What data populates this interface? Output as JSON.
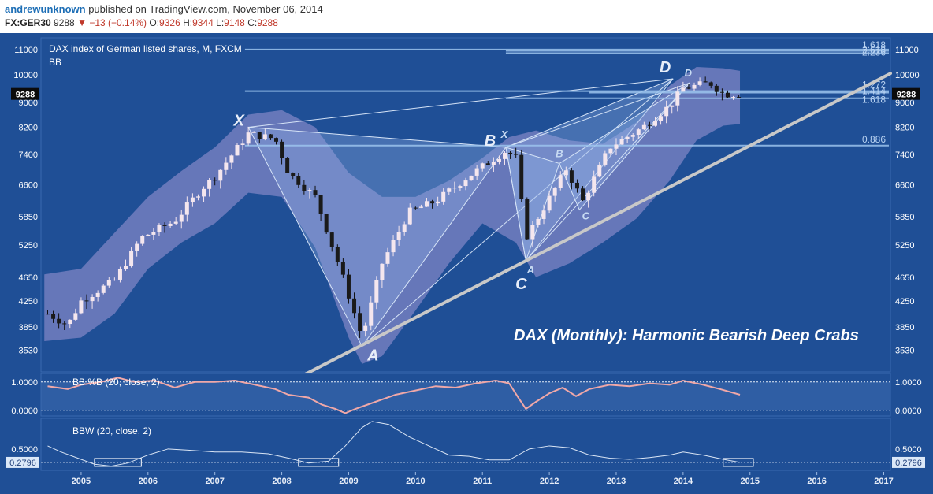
{
  "header": {
    "author": "andrewunknown",
    "published": "published on TradingView.com, November 06, 2014",
    "symbol": "FX:GER30",
    "last": "9288",
    "change_arrow": "▼",
    "change": "−13 (−0.14%)",
    "o_label": "O:",
    "o_value": "9326",
    "h_label": "H:",
    "h_value": "9344",
    "l_label": "L:",
    "l_value": "9148",
    "c_label": "C:",
    "c_value": "9288"
  },
  "colors": {
    "background": "#1f4f96",
    "band": "#7f84c4",
    "pattern_fill": "#8fb0e4",
    "bullish_candle": "#f4e6ee",
    "bearish_candle": "#1a1a1a",
    "fib_line": "#9cc4ee",
    "trend_line": "#c8c8c8",
    "pctb_line": "#f0a8a8",
    "bbw_line": "#dbe6f5"
  },
  "chart_data": {
    "type": "candlestick",
    "title": "DAX index of German listed shares, M, FXCM",
    "indicator_label": "BB",
    "annotation": "DAX (Monthly): Harmonic Bearish Deep Crabs",
    "price_scale": "log",
    "price_ticks": [
      11000,
      10000,
      9000,
      8200,
      7400,
      6600,
      5850,
      5250,
      4650,
      4250,
      3850,
      3530
    ],
    "price_range": [
      3250,
      11500
    ],
    "last_price_badge": "9288",
    "x_range": [
      2004.4,
      2017.1
    ],
    "x_ticks": [
      "2005",
      "2006",
      "2007",
      "2008",
      "2009",
      "2010",
      "2011",
      "2012",
      "2013",
      "2014",
      "2015",
      "2016",
      "2017"
    ],
    "price_path": [
      [
        2004.5,
        4050
      ],
      [
        2004.8,
        3880
      ],
      [
        2005.0,
        4250
      ],
      [
        2005.5,
        4600
      ],
      [
        2005.9,
        5400
      ],
      [
        2006.4,
        5750
      ],
      [
        2006.8,
        6500
      ],
      [
        2007.0,
        6800
      ],
      [
        2007.5,
        8000
      ],
      [
        2007.9,
        7850
      ],
      [
        2008.1,
        6900
      ],
      [
        2008.5,
        6300
      ],
      [
        2008.9,
        4700
      ],
      [
        2009.2,
        3700
      ],
      [
        2009.5,
        4900
      ],
      [
        2009.9,
        5950
      ],
      [
        2010.3,
        6200
      ],
      [
        2010.9,
        6950
      ],
      [
        2011.35,
        7500
      ],
      [
        2011.5,
        7300
      ],
      [
        2011.65,
        5400
      ],
      [
        2011.9,
        6000
      ],
      [
        2012.25,
        7000
      ],
      [
        2012.5,
        6200
      ],
      [
        2012.9,
        7600
      ],
      [
        2013.4,
        8200
      ],
      [
        2013.8,
        8900
      ],
      [
        2014.0,
        9500
      ],
      [
        2014.4,
        9700
      ],
      [
        2014.6,
        9300
      ],
      [
        2014.85,
        9288
      ]
    ],
    "bands_upper": [
      [
        2004.45,
        4700
      ],
      [
        2005.0,
        4800
      ],
      [
        2005.5,
        5500
      ],
      [
        2006.0,
        6300
      ],
      [
        2006.5,
        6950
      ],
      [
        2007.0,
        7600
      ],
      [
        2007.5,
        8600
      ],
      [
        2008.0,
        8750
      ],
      [
        2008.5,
        8200
      ],
      [
        2009.0,
        6900
      ],
      [
        2009.5,
        6300
      ],
      [
        2010.0,
        6300
      ],
      [
        2010.5,
        6700
      ],
      [
        2011.0,
        7300
      ],
      [
        2011.4,
        7900
      ],
      [
        2011.8,
        8100
      ],
      [
        2012.3,
        7800
      ],
      [
        2012.8,
        7700
      ],
      [
        2013.3,
        8350
      ],
      [
        2013.8,
        9600
      ],
      [
        2014.2,
        10300
      ],
      [
        2014.6,
        10250
      ],
      [
        2014.85,
        10150
      ]
    ],
    "bands_lower": [
      [
        2004.45,
        3650
      ],
      [
        2005.0,
        3700
      ],
      [
        2005.5,
        4050
      ],
      [
        2006.0,
        4800
      ],
      [
        2006.5,
        5300
      ],
      [
        2007.0,
        5700
      ],
      [
        2007.5,
        6400
      ],
      [
        2008.0,
        6300
      ],
      [
        2008.5,
        5200
      ],
      [
        2009.0,
        3700
      ],
      [
        2009.2,
        3350
      ],
      [
        2009.5,
        3450
      ],
      [
        2010.0,
        4100
      ],
      [
        2010.5,
        4900
      ],
      [
        2011.0,
        5700
      ],
      [
        2011.5,
        5300
      ],
      [
        2011.8,
        4650
      ],
      [
        2012.3,
        4900
      ],
      [
        2012.8,
        5300
      ],
      [
        2013.3,
        5800
      ],
      [
        2013.8,
        6700
      ],
      [
        2014.2,
        7800
      ],
      [
        2014.6,
        8250
      ],
      [
        2014.85,
        8300
      ]
    ],
    "pattern1": {
      "points": {
        "X": [
          2007.5,
          8200
        ],
        "A": [
          2009.2,
          3580
        ],
        "B": [
          2011.35,
          7600
        ],
        "C": [
          2011.65,
          4950
        ],
        "D": [
          2013.85,
          9850
        ]
      },
      "labels": [
        "X",
        "A",
        "B",
        "C",
        "D"
      ]
    },
    "pattern2": {
      "points": {
        "X": [
          2011.35,
          7600
        ],
        "A": [
          2011.65,
          4950
        ],
        "B": [
          2012.15,
          7150
        ],
        "C": [
          2012.45,
          6000
        ],
        "D": [
          2014.1,
          9700
        ]
      },
      "labels": [
        "X",
        "A",
        "B",
        "C",
        "D"
      ]
    },
    "fib_levels": [
      {
        "label": "1.618",
        "value": 11000,
        "x_start": 2007.45
      },
      {
        "label": "2.236",
        "value": 10950,
        "x_start": 2011.35
      },
      {
        "label": "2.618",
        "value": 10850,
        "x_start": 2011.35
      },
      {
        "label": "1.272",
        "value": 9400,
        "x_start": 2007.45
      },
      {
        "label": "1.414",
        "value": 9350,
        "x_start": 2012.6
      },
      {
        "label": "1.618",
        "value": 9150,
        "x_start": 2011.35
      },
      {
        "label": "0.886",
        "value": 7650,
        "x_start": 2007.45
      }
    ],
    "trendline": [
      [
        2008.3,
        3200
      ],
      [
        2017.1,
        10050
      ]
    ],
    "pctb": {
      "label": "BB %B (20, close, 2)",
      "ticks": [
        "1.0000",
        "0.0000"
      ],
      "upper_level": 1.0,
      "lower_level": 0.0,
      "range": [
        -0.2,
        1.3
      ],
      "values": [
        [
          2004.5,
          0.85
        ],
        [
          2004.8,
          0.75
        ],
        [
          2005.0,
          0.9
        ],
        [
          2005.3,
          1.0
        ],
        [
          2005.55,
          1.15
        ],
        [
          2005.8,
          1.0
        ],
        [
          2006.1,
          1.05
        ],
        [
          2006.4,
          0.8
        ],
        [
          2006.7,
          1.0
        ],
        [
          2007.0,
          1.0
        ],
        [
          2007.3,
          1.05
        ],
        [
          2007.6,
          0.9
        ],
        [
          2007.9,
          0.75
        ],
        [
          2008.1,
          0.55
        ],
        [
          2008.4,
          0.45
        ],
        [
          2008.6,
          0.2
        ],
        [
          2008.8,
          0.05
        ],
        [
          2008.95,
          -0.1
        ],
        [
          2009.1,
          0.05
        ],
        [
          2009.4,
          0.3
        ],
        [
          2009.7,
          0.55
        ],
        [
          2010.0,
          0.7
        ],
        [
          2010.3,
          0.85
        ],
        [
          2010.6,
          0.8
        ],
        [
          2010.9,
          0.95
        ],
        [
          2011.2,
          1.05
        ],
        [
          2011.4,
          0.95
        ],
        [
          2011.55,
          0.4
        ],
        [
          2011.65,
          0.05
        ],
        [
          2011.8,
          0.3
        ],
        [
          2012.0,
          0.6
        ],
        [
          2012.2,
          0.8
        ],
        [
          2012.4,
          0.5
        ],
        [
          2012.6,
          0.75
        ],
        [
          2012.9,
          0.9
        ],
        [
          2013.2,
          0.85
        ],
        [
          2013.5,
          0.95
        ],
        [
          2013.8,
          0.9
        ],
        [
          2014.0,
          1.05
        ],
        [
          2014.3,
          0.9
        ],
        [
          2014.55,
          0.75
        ],
        [
          2014.85,
          0.55
        ]
      ]
    },
    "bbw": {
      "label": "BBW (20, close, 2)",
      "ticks": [
        "0.5000"
      ],
      "last_value_badge": "0.2796",
      "threshold": 0.2796,
      "range": [
        0.15,
        1.0
      ],
      "values": [
        [
          2004.5,
          0.55
        ],
        [
          2004.7,
          0.45
        ],
        [
          2004.95,
          0.35
        ],
        [
          2005.2,
          0.25
        ],
        [
          2005.45,
          0.22
        ],
        [
          2005.7,
          0.27
        ],
        [
          2006.0,
          0.4
        ],
        [
          2006.3,
          0.5
        ],
        [
          2006.6,
          0.48
        ],
        [
          2007.0,
          0.45
        ],
        [
          2007.4,
          0.45
        ],
        [
          2007.8,
          0.42
        ],
        [
          2008.1,
          0.35
        ],
        [
          2008.4,
          0.27
        ],
        [
          2008.7,
          0.3
        ],
        [
          2008.95,
          0.55
        ],
        [
          2009.2,
          0.85
        ],
        [
          2009.35,
          0.95
        ],
        [
          2009.6,
          0.9
        ],
        [
          2009.9,
          0.7
        ],
        [
          2010.2,
          0.55
        ],
        [
          2010.5,
          0.4
        ],
        [
          2010.8,
          0.38
        ],
        [
          2011.1,
          0.32
        ],
        [
          2011.4,
          0.32
        ],
        [
          2011.7,
          0.5
        ],
        [
          2012.0,
          0.55
        ],
        [
          2012.3,
          0.52
        ],
        [
          2012.6,
          0.4
        ],
        [
          2012.9,
          0.35
        ],
        [
          2013.2,
          0.33
        ],
        [
          2013.5,
          0.36
        ],
        [
          2013.8,
          0.4
        ],
        [
          2014.0,
          0.45
        ],
        [
          2014.3,
          0.4
        ],
        [
          2014.6,
          0.33
        ],
        [
          2014.85,
          0.28
        ]
      ],
      "squeeze_boxes": [
        [
          2005.2,
          2005.9
        ],
        [
          2008.25,
          2008.85
        ],
        [
          2014.6,
          2015.05
        ]
      ]
    }
  }
}
